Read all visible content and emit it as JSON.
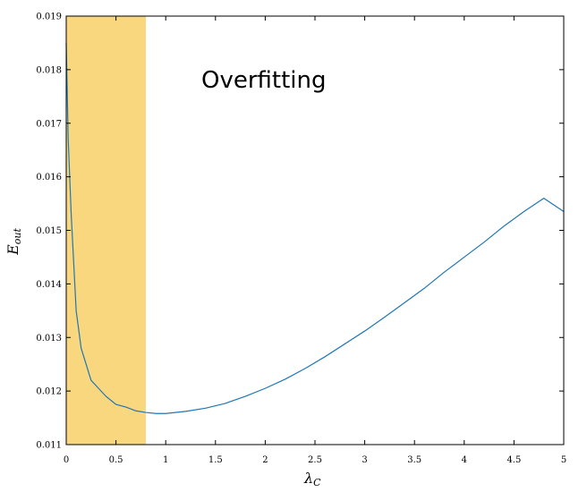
{
  "chart_data": {
    "type": "line",
    "title": "",
    "annotation": "Overfitting",
    "xlabel": {
      "main": "λ",
      "sub": "C"
    },
    "ylabel": {
      "main": "E",
      "sub": "out"
    },
    "xlim": [
      0,
      5
    ],
    "ylim": [
      0.011,
      0.019
    ],
    "xticks": [
      "0",
      "0.5",
      "1",
      "1.5",
      "2",
      "2.5",
      "3",
      "3.5",
      "4",
      "4.5",
      "5"
    ],
    "yticks": [
      "0.011",
      "0.012",
      "0.013",
      "0.014",
      "0.015",
      "0.016",
      "0.017",
      "0.018",
      "0.019"
    ],
    "grid": false,
    "shaded_region": {
      "x_start": 0,
      "x_end": 0.8,
      "color": "#f9d77e"
    },
    "series": [
      {
        "color": "#1f77b4",
        "x": [
          0,
          0.02,
          0.05,
          0.1,
          0.15,
          0.2,
          0.25,
          0.3,
          0.35,
          0.4,
          0.5,
          0.6,
          0.7,
          0.8,
          0.9,
          1.0,
          1.2,
          1.4,
          1.6,
          1.8,
          2.0,
          2.2,
          2.4,
          2.6,
          2.8,
          3.0,
          3.2,
          3.4,
          3.6,
          3.8,
          4.0,
          4.2,
          4.4,
          4.6,
          4.8,
          5.0
        ],
        "y": [
          0.0185,
          0.0167,
          0.0153,
          0.0135,
          0.0128,
          0.0125,
          0.0122,
          0.0121,
          0.012,
          0.0119,
          0.01175,
          0.0117,
          0.01163,
          0.0116,
          0.01158,
          0.01158,
          0.01162,
          0.01168,
          0.01177,
          0.0119,
          0.01205,
          0.01222,
          0.01242,
          0.01264,
          0.01288,
          0.01312,
          0.01338,
          0.01365,
          0.01392,
          0.01422,
          0.0145,
          0.01478,
          0.01508,
          0.01535,
          0.0156,
          0.01535
        ]
      }
    ]
  }
}
